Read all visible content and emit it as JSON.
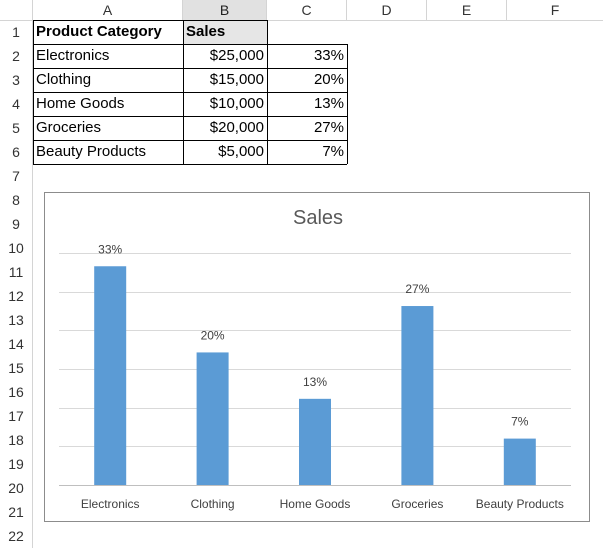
{
  "columns": [
    "A",
    "B",
    "C",
    "D",
    "E",
    "F"
  ],
  "rows": [
    "1",
    "2",
    "3",
    "4",
    "5",
    "6",
    "7",
    "8",
    "9",
    "10",
    "11",
    "12",
    "13",
    "14",
    "15",
    "16",
    "17",
    "18",
    "19",
    "20",
    "21",
    "22"
  ],
  "table": {
    "header": [
      "Product Category",
      "Sales",
      ""
    ],
    "rows": [
      [
        "Electronics",
        "$25,000",
        "33%"
      ],
      [
        "Clothing",
        "$15,000",
        "20%"
      ],
      [
        "Home Goods",
        "$10,000",
        "13%"
      ],
      [
        "Groceries",
        "$20,000",
        "27%"
      ],
      [
        "Beauty Products",
        "$5,000",
        "7%"
      ]
    ]
  },
  "colors": {
    "bar": "#5b9bd5",
    "gridline": "#d9d9d9",
    "selected_header": "#e1e1e1"
  },
  "chart_data": {
    "type": "bar",
    "title": "Sales",
    "categories": [
      "Electronics",
      "Clothing",
      "Home Goods",
      "Groceries",
      "Beauty Products"
    ],
    "values": [
      33,
      20,
      13,
      27,
      7
    ],
    "data_labels": [
      "33%",
      "20%",
      "13%",
      "27%",
      "7%"
    ],
    "ylim": [
      0,
      35
    ],
    "grid": true,
    "legend": "none",
    "xlabel": "",
    "ylabel": ""
  }
}
